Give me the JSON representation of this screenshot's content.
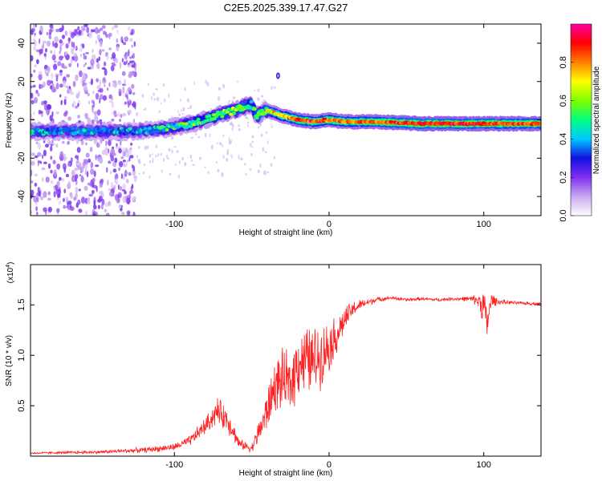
{
  "title": "C2E5.2025.339.17.47.G27",
  "chart_data": [
    {
      "type": "heatmap",
      "name": "spectrogram",
      "xlabel": "Height of straight line (km)",
      "ylabel": "Frequency (Hz)",
      "xlim": [
        -193,
        137
      ],
      "ylim": [
        -50,
        50
      ],
      "xticks": [
        -100,
        0,
        100
      ],
      "xtick_labels": [
        "-100",
        "0",
        "100"
      ],
      "yticks": [
        -40,
        -20,
        0,
        20,
        40
      ],
      "ytick_labels": [
        "-40",
        "-20",
        "0",
        "20",
        "40"
      ],
      "colorbar": {
        "label": "Normalized spectral amplitude",
        "range": [
          0,
          1
        ],
        "ticks": [
          0.0,
          0.2,
          0.4,
          0.6,
          0.8
        ],
        "tick_labels": [
          "0.0",
          "0.2",
          "0.4",
          "0.6",
          "0.8"
        ],
        "colors": [
          "#ffffff",
          "#c8a8f0",
          "#8030f0",
          "#1010e0",
          "#00c8ff",
          "#00ff80",
          "#80ff00",
          "#ffff00",
          "#ff8000",
          "#ff0000",
          "#ff00a0"
        ]
      },
      "ridge": {
        "x": [
          -193,
          -160,
          -130,
          -110,
          -95,
          -80,
          -70,
          -60,
          -55,
          -50,
          -47,
          -45,
          -40,
          -30,
          -20,
          -10,
          0,
          10,
          30,
          60,
          90,
          120,
          137
        ],
        "freq": [
          -6,
          -6,
          -6,
          -5,
          -3,
          0,
          3,
          5,
          7,
          8,
          2,
          3,
          5,
          2,
          0,
          -1,
          0,
          -1,
          -1,
          -2,
          -2,
          -2,
          -2
        ],
        "amplitude": [
          0.35,
          0.38,
          0.35,
          0.4,
          0.45,
          0.5,
          0.55,
          0.55,
          0.6,
          0.45,
          0.55,
          0.6,
          0.6,
          0.75,
          0.9,
          0.85,
          0.85,
          0.85,
          0.88,
          0.95,
          0.92,
          0.9,
          0.9
        ]
      },
      "noise_region_x": [
        -193,
        -125
      ]
    },
    {
      "type": "line",
      "name": "snr",
      "xlabel": "Height of straight line (km)",
      "ylabel": "SNR (10 * v/v)",
      "y_multiplier": "(x10",
      "y_multiplier_exp": "4",
      "y_multiplier_close": ")",
      "xlim": [
        -193,
        137
      ],
      "ylim": [
        0,
        1.9
      ],
      "xticks": [
        -100,
        0,
        100
      ],
      "xtick_labels": [
        "-100",
        "0",
        "100"
      ],
      "yticks": [
        0.5,
        1.0,
        1.5
      ],
      "ytick_labels": [
        "0.5",
        "1.0",
        "1.5"
      ],
      "color": "#ff2222",
      "series": [
        {
          "name": "SNR",
          "x": [
            -193,
            -150,
            -120,
            -100,
            -90,
            -80,
            -72,
            -65,
            -58,
            -50,
            -45,
            -40,
            -35,
            -30,
            -25,
            -20,
            -15,
            -10,
            -5,
            0,
            5,
            10,
            15,
            20,
            30,
            40,
            50,
            60,
            70,
            80,
            90,
            95,
            100,
            102,
            105,
            110,
            120,
            137
          ],
          "y": [
            0.03,
            0.04,
            0.06,
            0.09,
            0.15,
            0.3,
            0.45,
            0.35,
            0.12,
            0.08,
            0.25,
            0.45,
            0.7,
            0.75,
            0.7,
            0.95,
            0.95,
            0.95,
            1.0,
            1.1,
            1.2,
            1.35,
            1.45,
            1.5,
            1.55,
            1.57,
            1.55,
            1.56,
            1.55,
            1.56,
            1.56,
            1.55,
            1.5,
            1.3,
            1.55,
            1.53,
            1.52,
            1.51
          ],
          "noise_amplitude": [
            0.01,
            0.02,
            0.03,
            0.04,
            0.06,
            0.1,
            0.15,
            0.15,
            0.06,
            0.05,
            0.15,
            0.25,
            0.3,
            0.35,
            0.35,
            0.4,
            0.4,
            0.4,
            0.35,
            0.3,
            0.22,
            0.15,
            0.1,
            0.06,
            0.03,
            0.02,
            0.02,
            0.02,
            0.02,
            0.02,
            0.03,
            0.06,
            0.2,
            0.25,
            0.08,
            0.03,
            0.02,
            0.02
          ]
        }
      ]
    }
  ]
}
